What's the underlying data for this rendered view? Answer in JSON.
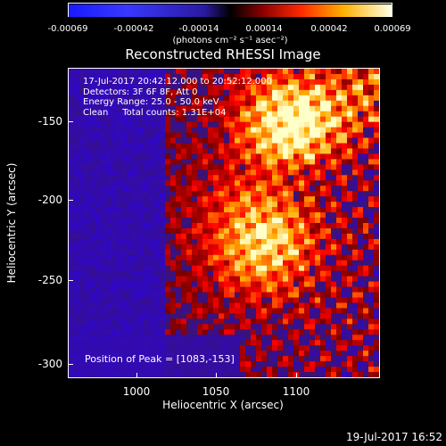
{
  "colorbar": {
    "ticks": [
      "-0.00069",
      "-0.00042",
      "-0.00014",
      "0.00014",
      "0.00042",
      "0.00069"
    ],
    "units": "(photons cm⁻² s⁻¹ asec⁻²)"
  },
  "title": "Reconstructed RHESSI Image",
  "annotations": {
    "line1": "17-Jul-2017 20:42:12.000 to 20:52:12.000",
    "line2": "Detectors: 3F 6F 8F, Att 0",
    "line3": "Energy Range: 25.0 - 50.0 keV",
    "line4": "Clean     Total counts: 1.31E+04",
    "peak": "Position of Peak = [1083,-153]"
  },
  "axes": {
    "xlabel": "Heliocentric X (arcsec)",
    "ylabel": "Heliocentric Y (arcsec)",
    "xticks": [
      "1000",
      "1050",
      "1100"
    ],
    "yticks": [
      "-150",
      "-200",
      "-250",
      "-300"
    ]
  },
  "timestamp": "19-Jul-2017 16:52"
}
